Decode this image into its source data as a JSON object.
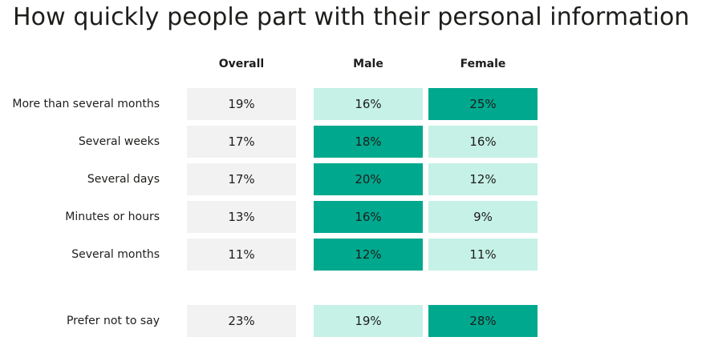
{
  "title": "How quickly people part with their personal information",
  "columns": [
    "Overall",
    "Male",
    "Female"
  ],
  "rows": [
    {
      "label": "More than several months",
      "overall": "19%",
      "male": "16%",
      "female": "25%"
    },
    {
      "label": "Several weeks",
      "overall": "17%",
      "male": "18%",
      "female": "16%"
    },
    {
      "label": "Several days",
      "overall": "17%",
      "male": "20%",
      "female": "12%"
    },
    {
      "label": "Minutes or hours",
      "overall": "13%",
      "male": "16%",
      "female": "9%"
    },
    {
      "label": "Several months",
      "overall": "11%",
      "male": "12%",
      "female": "11%"
    },
    {
      "label": "Prefer not to say",
      "overall": "23%",
      "male": "19%",
      "female": "28%"
    }
  ],
  "colors": {
    "overall_bg": "#f2f2f2",
    "higher_bg": "#00a88e",
    "lower_bg": "#c6f1e6"
  },
  "chart_data": {
    "type": "table",
    "title": "How quickly people part with their personal information",
    "columns": [
      "Overall",
      "Male",
      "Female"
    ],
    "categories": [
      "More than several months",
      "Several weeks",
      "Several days",
      "Minutes or hours",
      "Several months",
      "Prefer not to say"
    ],
    "series": [
      {
        "name": "Overall",
        "values": [
          19,
          17,
          17,
          13,
          11,
          23
        ]
      },
      {
        "name": "Male",
        "values": [
          16,
          18,
          20,
          16,
          12,
          19
        ]
      },
      {
        "name": "Female",
        "values": [
          25,
          16,
          12,
          9,
          11,
          28
        ]
      }
    ],
    "unit": "%"
  }
}
